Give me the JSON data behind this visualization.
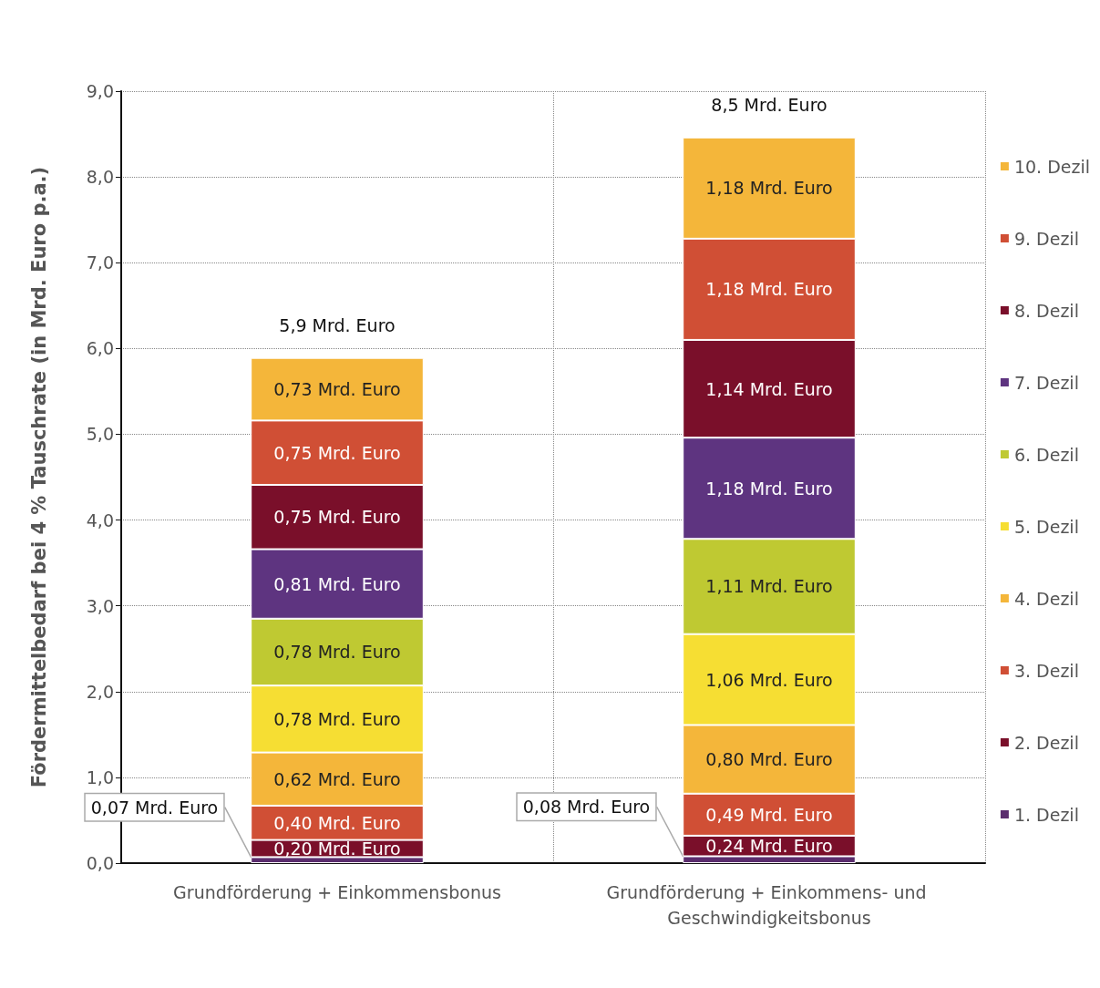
{
  "chart_data": {
    "type": "bar",
    "stacked": true,
    "ylabel": "Fördermittelbedarf bei 4 % Tauschrate (in Mrd. Euro p.a.)",
    "categories": [
      "Grundförderung + Einkommensbonus",
      "Grundförderung + Einkommens- und Geschwindigkeitsbonus"
    ],
    "series": [
      {
        "name": "1. Dezil",
        "color": "#5b2d6e",
        "values": [
          0.07,
          0.08
        ],
        "value_labels": [
          "0,07 Mrd. Euro",
          "0,08 Mrd. Euro"
        ]
      },
      {
        "name": "2. Dezil",
        "color": "#7a0f2a",
        "values": [
          0.2,
          0.24
        ],
        "value_labels": [
          "0,20 Mrd. Euro",
          "0,24 Mrd. Euro"
        ]
      },
      {
        "name": "3. Dezil",
        "color": "#d04f35",
        "values": [
          0.4,
          0.49
        ],
        "value_labels": [
          "0,40 Mrd. Euro",
          "0,49 Mrd. Euro"
        ]
      },
      {
        "name": "4. Dezil",
        "color": "#f4b63a",
        "values": [
          0.62,
          0.8
        ],
        "value_labels": [
          "0,62 Mrd. Euro",
          "0,80 Mrd. Euro"
        ]
      },
      {
        "name": "5. Dezil",
        "color": "#f6de33",
        "values": [
          0.78,
          1.06
        ],
        "value_labels": [
          "0,78 Mrd. Euro",
          "1,06 Mrd. Euro"
        ]
      },
      {
        "name": "6. Dezil",
        "color": "#bfc932",
        "values": [
          0.78,
          1.11
        ],
        "value_labels": [
          "0,78 Mrd. Euro",
          "1,11 Mrd. Euro"
        ]
      },
      {
        "name": "7. Dezil",
        "color": "#5e3480",
        "values": [
          0.81,
          1.18
        ],
        "value_labels": [
          "0,81 Mrd. Euro",
          "1,18 Mrd. Euro"
        ]
      },
      {
        "name": "8. Dezil",
        "color": "#7a0f2a",
        "values": [
          0.75,
          1.14
        ],
        "value_labels": [
          "0,75 Mrd. Euro",
          "1,14 Mrd. Euro"
        ]
      },
      {
        "name": "9. Dezil",
        "color": "#d04f35",
        "values": [
          0.75,
          1.18
        ],
        "value_labels": [
          "0,75 Mrd. Euro",
          "1,18 Mrd. Euro"
        ]
      },
      {
        "name": "10. Dezil",
        "color": "#f4b63a",
        "values": [
          0.73,
          1.18
        ],
        "value_labels": [
          "0,73 Mrd. Euro",
          "1,18 Mrd. Euro"
        ]
      }
    ],
    "totals": [
      "5,9 Mrd. Euro",
      "8,5 Mrd. Euro"
    ],
    "ylim": [
      0,
      9
    ],
    "yticks": [
      {
        "value": 0,
        "label": "0,0"
      },
      {
        "value": 1,
        "label": "1,0"
      },
      {
        "value": 2,
        "label": "2,0"
      },
      {
        "value": 3,
        "label": "3,0"
      },
      {
        "value": 4,
        "label": "4,0"
      },
      {
        "value": 5,
        "label": "5,0"
      },
      {
        "value": 6,
        "label": "6,0"
      },
      {
        "value": 7,
        "label": "7,0"
      },
      {
        "value": 8,
        "label": "8,0"
      },
      {
        "value": 9,
        "label": "9,0"
      }
    ],
    "grid": true,
    "legend": "right"
  }
}
